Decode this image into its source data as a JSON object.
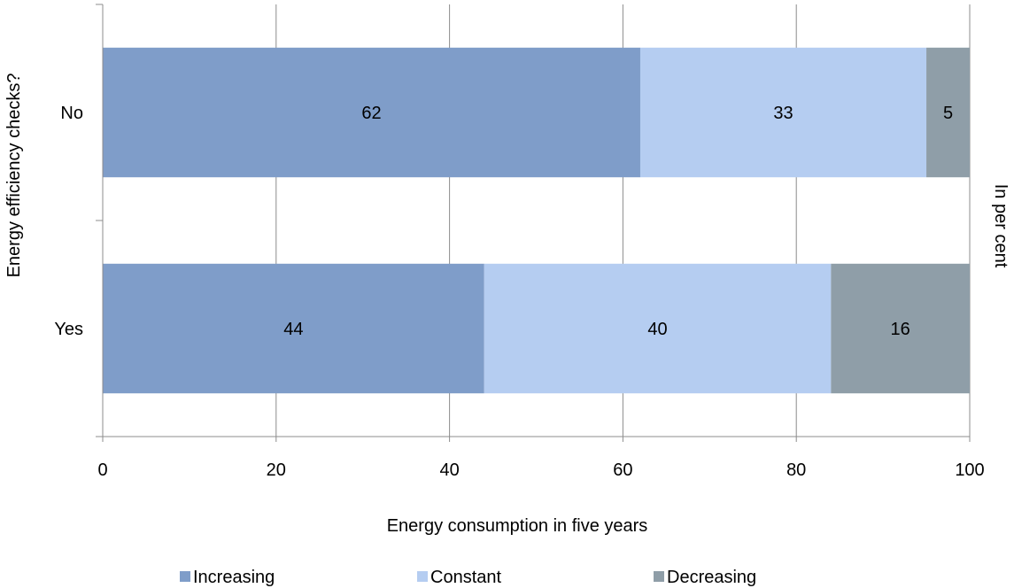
{
  "chart_data": {
    "type": "bar",
    "orientation": "horizontal",
    "stacked": true,
    "categories": [
      "No",
      "Yes"
    ],
    "series": [
      {
        "name": "Increasing",
        "values": [
          62,
          44
        ],
        "color": "#7f9dc9"
      },
      {
        "name": "Constant",
        "values": [
          33,
          40
        ],
        "color": "#b5cdf1"
      },
      {
        "name": "Decreasing",
        "values": [
          5,
          16
        ],
        "color": "#8f9ea8"
      }
    ],
    "xlabel": "Energy consumption in five years",
    "ylabel": "Energy efficiency checks?",
    "secondary_label": "In per cent",
    "xlim": [
      0,
      100
    ],
    "x_ticks": [
      "0",
      "20",
      "40",
      "60",
      "80",
      "100"
    ],
    "grid": "vertical",
    "legend_position": "bottom"
  }
}
